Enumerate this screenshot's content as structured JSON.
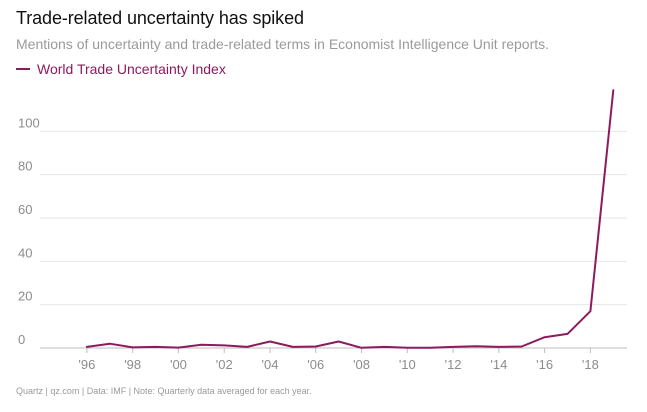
{
  "colors": {
    "series": "#8e1a5e",
    "grid": "#e6e6e6",
    "axis": "#bdbdbd"
  },
  "chart_data": {
    "type": "line",
    "title": "Trade-related uncertainty has spiked",
    "subtitle": "Mentions of uncertainty and trade-related terms in Economist Intelligence Unit reports.",
    "xlabel": "",
    "ylabel": "",
    "ylim": [
      0,
      120
    ],
    "xlim": [
      1994.3,
      2019.6
    ],
    "y_ticks": [
      0,
      20,
      40,
      60,
      80,
      100
    ],
    "y_tick_labels": [
      "0",
      "20",
      "40",
      "60",
      "80",
      "100"
    ],
    "x_ticks": [
      1996,
      1998,
      2000,
      2002,
      2004,
      2006,
      2008,
      2010,
      2012,
      2014,
      2016,
      2018
    ],
    "x_tick_labels": [
      "'96",
      "'98",
      "'00",
      "'02",
      "'04",
      "'06",
      "'08",
      "'10",
      "'12",
      "'14",
      "'16",
      "'18"
    ],
    "grid": true,
    "legend_position": "top-left",
    "series": [
      {
        "name": "World Trade Uncertainty Index",
        "x": [
          1996,
          1997,
          1998,
          1999,
          2000,
          2001,
          2002,
          2003,
          2004,
          2005,
          2006,
          2007,
          2008,
          2009,
          2010,
          2011,
          2012,
          2013,
          2014,
          2015,
          2016,
          2017,
          2018,
          2019
        ],
        "values": [
          0.5,
          2.0,
          0.3,
          0.5,
          0.2,
          1.5,
          1.2,
          0.5,
          3.0,
          0.5,
          0.7,
          3.0,
          0.1,
          0.5,
          0.1,
          0.1,
          0.5,
          0.8,
          0.5,
          0.7,
          5.0,
          6.5,
          17.0,
          119.0
        ]
      }
    ],
    "footer": "Quartz | qz.com | Data: IMF | Note: Quarterly data averaged for each year."
  }
}
